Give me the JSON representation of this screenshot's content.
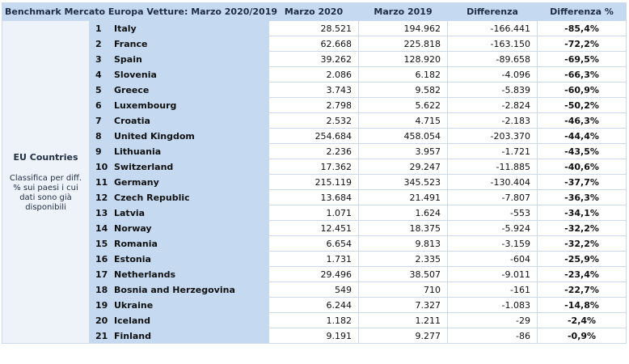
{
  "table": {
    "title": "Benchmark Mercato Europa Vetture: Marzo 2020/2019",
    "columns": [
      "Marzo 2020",
      "Marzo 2019",
      "Differenza",
      "Differenza %"
    ],
    "group_label": "EU Countries",
    "group_note": "Classifica per diff. % sui paesi i cui dati sono già disponibili",
    "rows": [
      {
        "rank": "1",
        "country": "Italy",
        "m2020": "28.521",
        "m2019": "194.962",
        "diff": "-166.441",
        "pct": "-85,4%"
      },
      {
        "rank": "2",
        "country": "France",
        "m2020": "62.668",
        "m2019": "225.818",
        "diff": "-163.150",
        "pct": "-72,2%"
      },
      {
        "rank": "3",
        "country": "Spain",
        "m2020": "39.262",
        "m2019": "128.920",
        "diff": "-89.658",
        "pct": "-69,5%"
      },
      {
        "rank": "4",
        "country": "Slovenia",
        "m2020": "2.086",
        "m2019": "6.182",
        "diff": "-4.096",
        "pct": "-66,3%"
      },
      {
        "rank": "5",
        "country": "Greece",
        "m2020": "3.743",
        "m2019": "9.582",
        "diff": "-5.839",
        "pct": "-60,9%"
      },
      {
        "rank": "6",
        "country": "Luxembourg",
        "m2020": "2.798",
        "m2019": "5.622",
        "diff": "-2.824",
        "pct": "-50,2%"
      },
      {
        "rank": "7",
        "country": "Croatia",
        "m2020": "2.532",
        "m2019": "4.715",
        "diff": "-2.183",
        "pct": "-46,3%"
      },
      {
        "rank": "8",
        "country": "United Kingdom",
        "m2020": "254.684",
        "m2019": "458.054",
        "diff": "-203.370",
        "pct": "-44,4%"
      },
      {
        "rank": "9",
        "country": "Lithuania",
        "m2020": "2.236",
        "m2019": "3.957",
        "diff": "-1.721",
        "pct": "-43,5%"
      },
      {
        "rank": "10",
        "country": "Switzerland",
        "m2020": "17.362",
        "m2019": "29.247",
        "diff": "-11.885",
        "pct": "-40,6%"
      },
      {
        "rank": "11",
        "country": "Germany",
        "m2020": "215.119",
        "m2019": "345.523",
        "diff": "-130.404",
        "pct": "-37,7%"
      },
      {
        "rank": "12",
        "country": "Czech Republic",
        "m2020": "13.684",
        "m2019": "21.491",
        "diff": "-7.807",
        "pct": "-36,3%"
      },
      {
        "rank": "13",
        "country": "Latvia",
        "m2020": "1.071",
        "m2019": "1.624",
        "diff": "-553",
        "pct": "-34,1%"
      },
      {
        "rank": "14",
        "country": "Norway",
        "m2020": "12.451",
        "m2019": "18.375",
        "diff": "-5.924",
        "pct": "-32,2%"
      },
      {
        "rank": "15",
        "country": "Romania",
        "m2020": "6.654",
        "m2019": "9.813",
        "diff": "-3.159",
        "pct": "-32,2%"
      },
      {
        "rank": "16",
        "country": "Estonia",
        "m2020": "1.731",
        "m2019": "2.335",
        "diff": "-604",
        "pct": "-25,9%"
      },
      {
        "rank": "17",
        "country": "Netherlands",
        "m2020": "29.496",
        "m2019": "38.507",
        "diff": "-9.011",
        "pct": "-23,4%"
      },
      {
        "rank": "18",
        "country": "Bosnia and Herzegovina",
        "m2020": "549",
        "m2019": "710",
        "diff": "-161",
        "pct": "-22,7%"
      },
      {
        "rank": "19",
        "country": "Ukraine",
        "m2020": "6.244",
        "m2019": "7.327",
        "diff": "-1.083",
        "pct": "-14,8%"
      },
      {
        "rank": "20",
        "country": "Iceland",
        "m2020": "1.182",
        "m2019": "1.211",
        "diff": "-29",
        "pct": "-2,4%"
      },
      {
        "rank": "21",
        "country": "Finland",
        "m2020": "9.191",
        "m2019": "9.277",
        "diff": "-86",
        "pct": "-0,9%"
      }
    ]
  }
}
